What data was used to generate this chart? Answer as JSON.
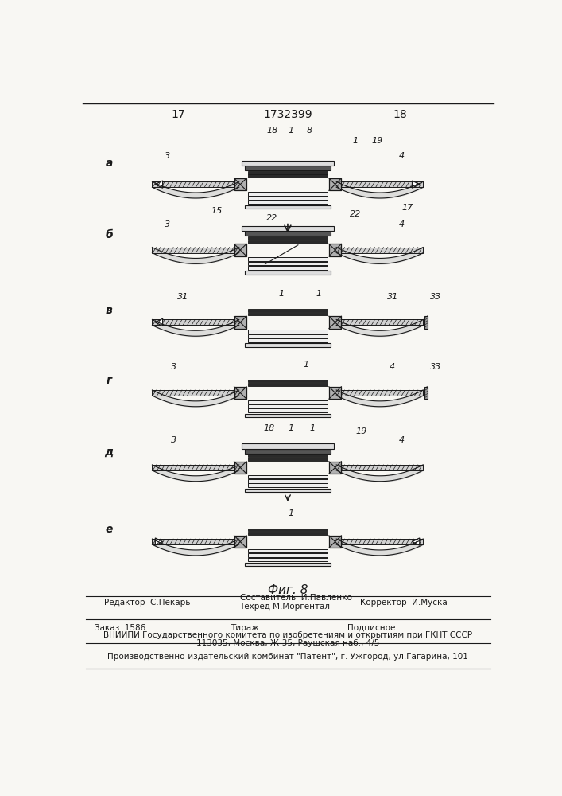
{
  "page_number_left": "17",
  "page_number_right": "18",
  "patent_number": "1732399",
  "figure_label": "Фиг. 8",
  "background_color": "#f8f7f3",
  "line_color": "#1a1a1a",
  "footer_editor": "Редактор  С.Пекарь",
  "footer_composer": "Составитель  И.Павленко",
  "footer_techred": "Техред М.Моргентал",
  "footer_corrector": "Корректор  И.Муска",
  "footer_order": "Заказ  1586",
  "footer_tirazh": "Тираж",
  "footer_podpisnoe": "Подписное",
  "footer_vniiipi": "ВНИИПИ Государственного комитета по изобретениям и открытиям при ГКНТ СССР",
  "footer_address": "113035, Москва, Ж-35, Раушская наб., 4/5",
  "footer_production": "Производственно-издательский комбинат \"Патент\", г. Ужгород, ул.Гагарина, 101"
}
